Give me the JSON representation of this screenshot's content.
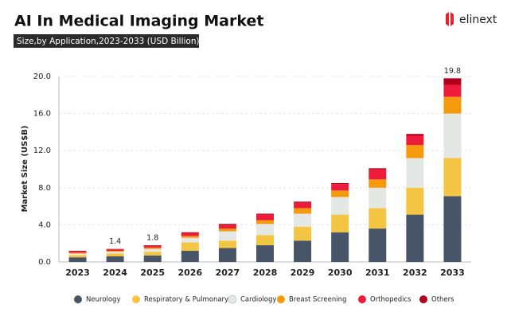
{
  "brand": "elinext",
  "chart_data": {
    "type": "stacked-bar",
    "title": "AI In Medical Imaging Market",
    "subtitle": "Size,by Application,2023-2033 (USD Billion)",
    "y_label": "Market Size (US$B)",
    "categories": [
      "2023",
      "2024",
      "2025",
      "2026",
      "2027",
      "2028",
      "2029",
      "2030",
      "2031",
      "2032",
      "2033"
    ],
    "series": [
      {
        "name": "Neurology",
        "color": "#485468",
        "values": [
          0.5,
          0.6,
          0.7,
          1.2,
          1.5,
          1.8,
          2.3,
          3.2,
          3.6,
          5.1,
          7.1
        ]
      },
      {
        "name": "Respiratory & Pulmonary",
        "color": "#f4c542",
        "values": [
          0.25,
          0.3,
          0.4,
          0.9,
          0.8,
          1.1,
          1.5,
          1.9,
          2.2,
          2.9,
          4.1
        ]
      },
      {
        "name": "Cardiology",
        "color": "#e3e8e5",
        "values": [
          0.15,
          0.2,
          0.3,
          0.5,
          1.0,
          1.2,
          1.4,
          1.9,
          2.2,
          3.2,
          4.8
        ]
      },
      {
        "name": "Breast Screening",
        "color": "#f59a0c",
        "values": [
          0.1,
          0.1,
          0.15,
          0.2,
          0.3,
          0.4,
          0.6,
          0.7,
          0.9,
          1.4,
          1.8
        ]
      },
      {
        "name": "Orthopedics",
        "color": "#ee1c3a",
        "values": [
          0.15,
          0.15,
          0.2,
          0.3,
          0.4,
          0.6,
          0.6,
          0.7,
          1.1,
          1.0,
          1.3
        ]
      },
      {
        "name": "Others",
        "color": "#b0001c",
        "values": [
          0.05,
          0.05,
          0.05,
          0.1,
          0.1,
          0.1,
          0.1,
          0.1,
          0.1,
          0.2,
          0.7
        ]
      }
    ],
    "total_labels": [
      null,
      1.4,
      1.8,
      null,
      null,
      null,
      null,
      null,
      null,
      null,
      19.8
    ],
    "ylim": [
      0,
      20
    ],
    "yticks": [
      {
        "value": 0,
        "label": "0.0"
      },
      {
        "value": 4,
        "label": "4.0"
      },
      {
        "value": 8,
        "label": "8.0"
      },
      {
        "value": 12,
        "label": "12.0"
      },
      {
        "value": 16,
        "label": "16.0"
      },
      {
        "value": 20,
        "label": "20.0"
      }
    ],
    "grid": true,
    "legend": "bottom"
  }
}
